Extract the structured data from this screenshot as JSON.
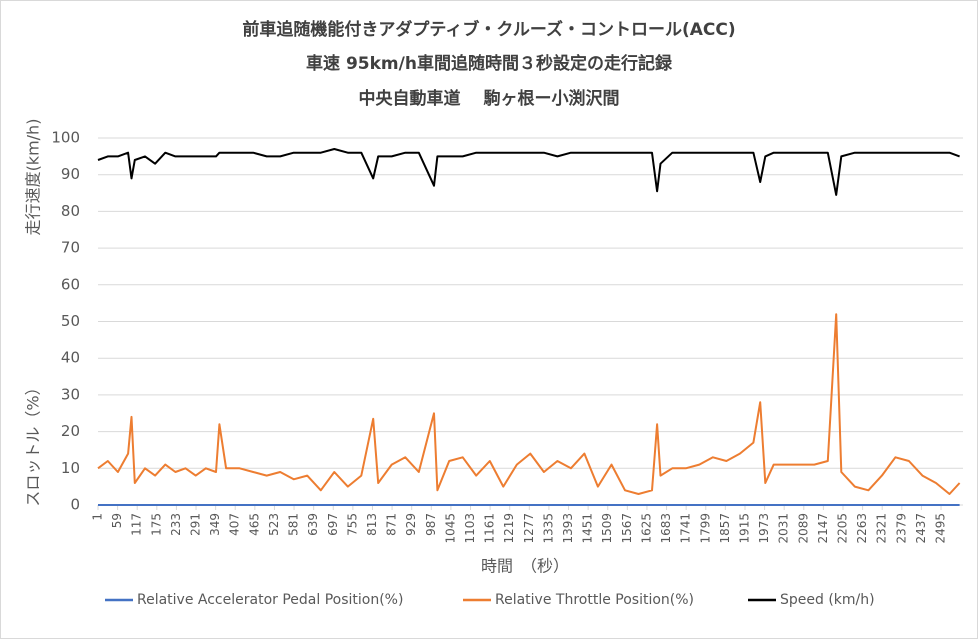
{
  "chart_data": {
    "type": "line",
    "title": [
      "前車追随機能付きアダプティブ・クルーズ・コントロール(ACC)",
      "車速 95km/h車間追随時間３秒設定の走行記録",
      "中央自動車道　 駒ヶ根ー小渕沢間"
    ],
    "y_axis_labels": [
      "走行速度(km/h)",
      "スロットル（%）"
    ],
    "x_axis_label": "時間　（秒）",
    "x": [
      1,
      30,
      60,
      90,
      100,
      110,
      140,
      170,
      200,
      230,
      260,
      290,
      320,
      350,
      360,
      380,
      420,
      460,
      500,
      540,
      580,
      620,
      660,
      700,
      740,
      780,
      815,
      830,
      870,
      910,
      950,
      995,
      1005,
      1040,
      1080,
      1120,
      1160,
      1200,
      1240,
      1280,
      1320,
      1360,
      1400,
      1440,
      1480,
      1520,
      1560,
      1600,
      1640,
      1655,
      1665,
      1700,
      1740,
      1780,
      1820,
      1860,
      1900,
      1940,
      1960,
      1975,
      2000,
      2040,
      2080,
      2120,
      2160,
      2185,
      2200,
      2240,
      2280,
      2320,
      2360,
      2400,
      2440,
      2480,
      2520,
      2550
    ],
    "series": [
      {
        "name": "Relative Accelerator Pedal Position(%)",
        "color": "#4472c4",
        "values": [
          0,
          0,
          0,
          0,
          0,
          0,
          0,
          0,
          0,
          0,
          0,
          0,
          0,
          0,
          0,
          0,
          0,
          0,
          0,
          0,
          0,
          0,
          0,
          0,
          0,
          0,
          0,
          0,
          0,
          0,
          0,
          0,
          0,
          0,
          0,
          0,
          0,
          0,
          0,
          0,
          0,
          0,
          0,
          0,
          0,
          0,
          0,
          0,
          0,
          0,
          0,
          0,
          0,
          0,
          0,
          0,
          0,
          0,
          0,
          0,
          0,
          0,
          0,
          0,
          0,
          0,
          0,
          0,
          0,
          0,
          0,
          0,
          0,
          0,
          0,
          0
        ]
      },
      {
        "name": "Relative Throttle Position(%)",
        "color": "#ed7d31",
        "values": [
          10,
          12,
          9,
          14,
          24,
          6,
          10,
          8,
          11,
          9,
          10,
          8,
          10,
          9,
          22,
          10,
          10,
          9,
          8,
          9,
          7,
          8,
          4,
          9,
          5,
          8,
          23.5,
          6,
          11,
          13,
          9,
          25,
          4,
          12,
          13,
          8,
          12,
          5,
          11,
          14,
          9,
          12,
          10,
          14,
          5,
          11,
          4,
          3,
          4,
          22,
          8,
          10,
          10,
          11,
          13,
          12,
          14,
          17,
          28,
          6,
          11,
          11,
          11,
          11,
          12,
          52,
          9,
          5,
          4,
          8,
          13,
          12,
          8,
          6,
          3,
          6
        ]
      },
      {
        "name": "Speed (km/h)",
        "color": "#000000",
        "values": [
          94,
          95,
          95,
          96,
          89,
          94,
          95,
          93,
          96,
          95,
          95,
          95,
          95,
          95,
          96,
          96,
          96,
          96,
          95,
          95,
          96,
          96,
          96,
          97,
          96,
          96,
          89,
          95,
          95,
          96,
          96,
          87,
          95,
          95,
          95,
          96,
          96,
          96,
          96,
          96,
          96,
          95,
          96,
          96,
          96,
          96,
          96,
          96,
          96,
          85.5,
          93,
          96,
          96,
          96,
          96,
          96,
          96,
          96,
          88,
          95,
          96,
          96,
          96,
          96,
          96,
          84.5,
          95,
          96,
          96,
          96,
          96,
          96,
          96,
          96,
          96,
          95
        ]
      }
    ],
    "xlim": [
      1,
      2560
    ],
    "xticks": [
      1,
      59,
      117,
      175,
      233,
      291,
      349,
      407,
      465,
      523,
      581,
      639,
      697,
      755,
      813,
      871,
      929,
      987,
      1045,
      1103,
      1161,
      1219,
      1277,
      1335,
      1393,
      1451,
      1509,
      1567,
      1625,
      1683,
      1741,
      1799,
      1857,
      1915,
      1973,
      2031,
      2089,
      2147,
      2205,
      2263,
      2321,
      2379,
      2437,
      2495
    ],
    "ylim": [
      0,
      100
    ],
    "yticks": [
      0,
      10,
      20,
      30,
      40,
      50,
      60,
      70,
      80,
      90,
      100
    ],
    "grid": true,
    "legend": "bottom"
  }
}
